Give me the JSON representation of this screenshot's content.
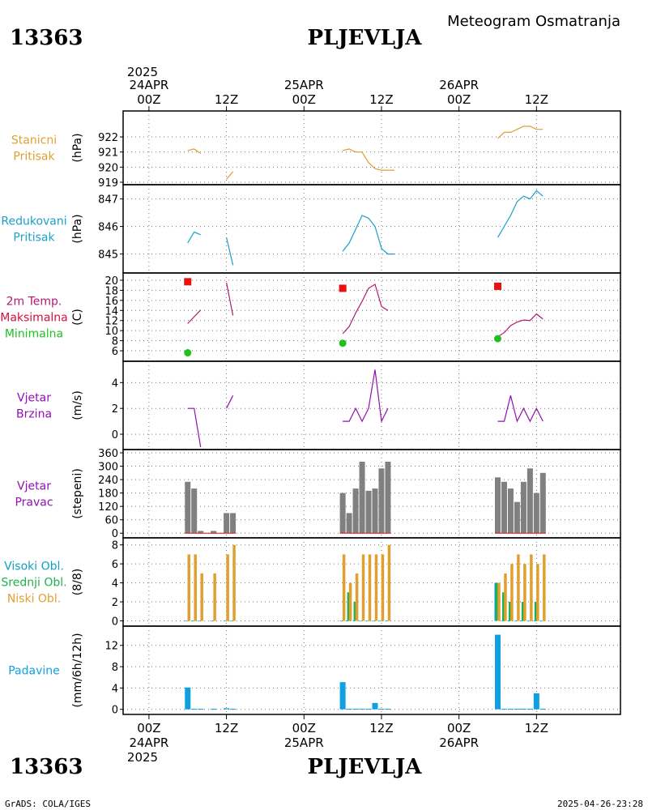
{
  "header": {
    "station_id": "13363",
    "station_name": "PLJEVLJA",
    "product_title": "Meteogram Osmatranja"
  },
  "footer": {
    "station_id": "13363",
    "station_name": "PLJEVLJA",
    "credit": "GrADS: COLA/IGES",
    "timestamp": "2025-04-26-23:28"
  },
  "time_axis": {
    "top_year": "2025",
    "bottom_year": "2025",
    "days": [
      {
        "time": "00Z",
        "date": "24APR"
      },
      {
        "time": "12Z",
        "date": ""
      },
      {
        "time": "00Z",
        "date": "25APR"
      },
      {
        "time": "12Z",
        "date": ""
      },
      {
        "time": "00Z",
        "date": "26APR"
      },
      {
        "time": "12Z",
        "date": ""
      }
    ],
    "hours": [
      0,
      12,
      24,
      36,
      48,
      60
    ]
  },
  "colors": {
    "station_pressure": "#e0a030",
    "reduced_pressure": "#1aa0c8",
    "temperature": "#b01870",
    "max_marker": "#e81010",
    "min_marker": "#20c020",
    "max_label": "#d01040",
    "wind": "#9010b0",
    "wind_dir_bar": "#808080",
    "high_cloud": "#10a0c0",
    "mid_cloud": "#20b050",
    "low_cloud": "#e0a030",
    "precip": "#10a0e0"
  },
  "chart_data": [
    {
      "type": "line",
      "panel": "station_pressure",
      "label_lines": [
        "Stanicni",
        "Pritisak"
      ],
      "unit": "(hPa)",
      "ylim": [
        919,
        923.5
      ],
      "yticks": [
        919,
        920,
        921,
        922
      ],
      "series": [
        {
          "values": [
            [
              6,
              921.1
            ],
            [
              7,
              921.2
            ],
            [
              8,
              920.9
            ]
          ]
        },
        {
          "values": [
            [
              12,
              919.2
            ],
            [
              13,
              919.7
            ]
          ]
        },
        {
          "values": [
            [
              30,
              921.1
            ],
            [
              31,
              921.2
            ],
            [
              32,
              921.0
            ],
            [
              33,
              921.0
            ],
            [
              34,
              920.3
            ],
            [
              35,
              919.9
            ],
            [
              36,
              919.8
            ],
            [
              37,
              919.8
            ],
            [
              38,
              919.8
            ]
          ]
        },
        {
          "values": [
            [
              54,
              921.9
            ],
            [
              55,
              922.3
            ],
            [
              56,
              922.3
            ],
            [
              57,
              922.5
            ],
            [
              58,
              922.7
            ],
            [
              59,
              922.7
            ],
            [
              60,
              922.5
            ],
            [
              61,
              922.5
            ]
          ]
        }
      ]
    },
    {
      "type": "line",
      "panel": "reduced_pressure",
      "label_lines": [
        "Redukovani",
        "Pritisak"
      ],
      "unit": "(hPa)",
      "ylim": [
        844.4,
        847.4
      ],
      "yticks": [
        845,
        846,
        847
      ],
      "series": [
        {
          "values": [
            [
              6,
              845.4
            ],
            [
              7,
              845.8
            ],
            [
              8,
              845.7
            ]
          ]
        },
        {
          "values": [
            [
              12,
              845.6
            ],
            [
              13,
              844.6
            ]
          ]
        },
        {
          "values": [
            [
              30,
              845.1
            ],
            [
              31,
              845.4
            ],
            [
              32,
              845.9
            ],
            [
              33,
              846.4
            ],
            [
              34,
              846.3
            ],
            [
              35,
              846.0
            ],
            [
              36,
              845.2
            ],
            [
              37,
              845.0
            ],
            [
              38,
              845.0
            ]
          ]
        },
        {
          "values": [
            [
              54,
              845.6
            ],
            [
              55,
              846.0
            ],
            [
              56,
              846.4
            ],
            [
              57,
              846.9
            ],
            [
              58,
              847.1
            ],
            [
              59,
              847.0
            ],
            [
              60,
              847.3
            ],
            [
              61,
              847.1
            ]
          ]
        }
      ]
    },
    {
      "type": "line",
      "panel": "temperature",
      "label_lines": [
        "2m Temp.",
        "Maksimalna",
        "Minimalna"
      ],
      "unit": "(C)",
      "ylim": [
        4.4,
        20.8
      ],
      "yticks": [
        6,
        8,
        10,
        12,
        14,
        16,
        18,
        20
      ],
      "series": [
        {
          "values": [
            [
              6,
              11.4
            ],
            [
              8,
              14.1
            ]
          ]
        },
        {
          "values": [
            [
              12,
              19.5
            ],
            [
              13,
              13.0
            ]
          ]
        },
        {
          "values": [
            [
              30,
              9.4
            ],
            [
              31,
              10.8
            ],
            [
              32,
              13.5
            ],
            [
              33,
              15.8
            ],
            [
              34,
              18.4
            ],
            [
              35,
              19.2
            ],
            [
              36,
              14.8
            ],
            [
              37,
              14.0
            ]
          ]
        },
        {
          "values": [
            [
              54,
              8.8
            ],
            [
              55,
              9.6
            ],
            [
              56,
              11.0
            ],
            [
              57,
              11.7
            ],
            [
              58,
              12.1
            ],
            [
              59,
              12.0
            ],
            [
              60,
              13.3
            ],
            [
              61,
              12.3
            ]
          ]
        }
      ],
      "max_points": [
        [
          6,
          19.7
        ],
        [
          30,
          18.4
        ],
        [
          54,
          18.8
        ]
      ],
      "min_points": [
        [
          6,
          5.6
        ],
        [
          30,
          7.5
        ],
        [
          54,
          8.4
        ]
      ]
    },
    {
      "type": "line",
      "panel": "wind_speed",
      "label_lines": [
        "Vjetar",
        "Brzina"
      ],
      "unit": "(m/s)",
      "ylim": [
        -1,
        5.4
      ],
      "yticks": [
        0,
        2,
        4
      ],
      "series": [
        {
          "values": [
            [
              6,
              2
            ],
            [
              7,
              2
            ],
            [
              8,
              -1
            ]
          ]
        },
        {
          "values": [
            [
              12,
              2
            ],
            [
              13,
              3
            ]
          ]
        },
        {
          "values": [
            [
              30,
              1
            ],
            [
              31,
              1
            ],
            [
              32,
              2
            ],
            [
              33,
              1
            ],
            [
              34,
              2
            ],
            [
              35,
              5
            ],
            [
              36,
              1
            ],
            [
              37,
              2
            ]
          ]
        },
        {
          "values": [
            [
              54,
              1
            ],
            [
              55,
              1
            ],
            [
              56,
              3
            ],
            [
              57,
              1
            ],
            [
              58,
              2
            ],
            [
              59,
              1
            ],
            [
              60,
              2
            ],
            [
              61,
              1
            ]
          ]
        }
      ]
    },
    {
      "type": "bar",
      "panel": "wind_direction",
      "label_lines": [
        "Vjetar",
        "Pravac"
      ],
      "unit": "(stepeni)",
      "ylim": [
        -10,
        360
      ],
      "yticks": [
        0,
        60,
        120,
        180,
        240,
        300,
        360
      ],
      "x": [
        6,
        7,
        8,
        10,
        12,
        13,
        30,
        31,
        32,
        33,
        34,
        35,
        36,
        37,
        54,
        55,
        56,
        57,
        58,
        59,
        60,
        61
      ],
      "values": [
        230,
        200,
        10,
        10,
        90,
        90,
        180,
        90,
        200,
        320,
        190,
        200,
        290,
        320,
        250,
        230,
        200,
        140,
        230,
        290,
        180,
        270
      ]
    },
    {
      "type": "bar",
      "panel": "cloud_cover",
      "label_lines": [
        "Visoki Obl.",
        "Srednji Obl.",
        "Niski Obl."
      ],
      "unit": "(8/8)",
      "ylim": [
        -0.3,
        8.4
      ],
      "yticks": [
        0,
        2,
        4,
        6,
        8
      ],
      "x": [
        6,
        7,
        8,
        10,
        12,
        13,
        30,
        31,
        32,
        33,
        34,
        35,
        36,
        37,
        54,
        55,
        56,
        57,
        58,
        59,
        60,
        61
      ],
      "series": [
        {
          "name": "Visoki Obl.",
          "values": [
            0,
            0,
            0,
            0,
            0,
            0,
            0,
            0,
            0,
            0,
            0,
            0,
            0,
            0,
            4,
            0,
            0,
            0,
            0,
            0,
            0,
            0
          ]
        },
        {
          "name": "Srednji Obl.",
          "values": [
            0,
            0,
            0,
            0,
            0,
            0,
            0,
            3,
            2,
            0,
            0,
            0,
            0,
            0,
            4,
            3,
            2,
            0,
            2,
            0,
            2,
            0
          ]
        },
        {
          "name": "Niski Obl.",
          "values": [
            7,
            7,
            5,
            5,
            7,
            8,
            7,
            4,
            5,
            7,
            7,
            7,
            7,
            8,
            4,
            5,
            6,
            7,
            6,
            7,
            6,
            7
          ]
        }
      ]
    },
    {
      "type": "bar",
      "panel": "precipitation",
      "label_lines": [
        "Padavine"
      ],
      "unit": "(mm/6h/12h)",
      "ylim": [
        -0.5,
        15
      ],
      "yticks": [
        0,
        4,
        8,
        12
      ],
      "x": [
        6,
        7,
        8,
        10,
        12,
        13,
        30,
        31,
        32,
        33,
        34,
        35,
        36,
        37,
        54,
        55,
        56,
        57,
        58,
        59,
        60,
        61
      ],
      "values": [
        4.1,
        0.1,
        0.1,
        0.1,
        0.2,
        0.1,
        5.1,
        0.1,
        0.1,
        0.1,
        0.1,
        1.2,
        0.1,
        0.1,
        14.0,
        0.1,
        0.1,
        0.1,
        0.1,
        0.1,
        3.0,
        0.1
      ]
    }
  ]
}
